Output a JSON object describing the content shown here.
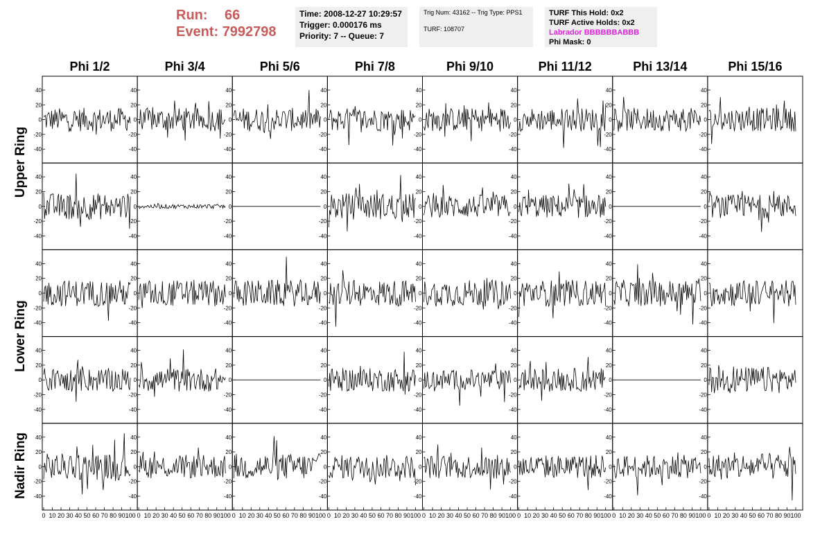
{
  "header": {
    "run_label": "Run:",
    "run_value": "66",
    "event_label": "Event:",
    "event_value": "7992798"
  },
  "time_box": {
    "time": "Time: 2008-12-27 10:29:57",
    "trigger": "Trigger: 0.000176 ms",
    "priority": "Priority: 7 -- Queue: 7"
  },
  "trig_box": {
    "trig": "Trig Num: 43162 -- Trig Type: PPS1",
    "turf": "TURF: 108707"
  },
  "turf_box": {
    "this_hold": "TURF This Hold: 0x2",
    "active_holds": "TURF Active Holds: 0x2",
    "labrador": "Labrador BBBBBBABBB",
    "phi_mask": "Phi Mask: 0"
  },
  "columns": [
    "Phi 1/2",
    "Phi 3/4",
    "Phi 5/6",
    "Phi 7/8",
    "Phi 9/10",
    "Phi 11/12",
    "Phi 13/14",
    "Phi 15/16"
  ],
  "rows": [
    "Upper Ring",
    "Lower Ring",
    "Nadir Ring"
  ],
  "colors": {
    "header_red": "#c85a5a",
    "labrador_magenta": "#e021e0",
    "box_bg": "#efefef"
  },
  "chart_data": {
    "type": "line",
    "grid": false,
    "xlim": [
      0,
      100
    ],
    "ylim": [
      -55,
      55
    ],
    "x_ticks": [
      "0",
      "10",
      "20",
      "30",
      "40",
      "50",
      "60",
      "70",
      "80",
      "90",
      "100"
    ],
    "y_ticks": [
      "40",
      "20",
      "0",
      "-20",
      "-40"
    ],
    "y_tick_values": [
      40,
      20,
      0,
      -20,
      -40
    ],
    "sample_count": 100,
    "waveforms": [
      [
        16,
        16,
        16,
        16,
        16,
        16,
        16,
        16
      ],
      [
        18,
        3,
        0,
        18,
        16,
        16,
        0,
        16
      ],
      [
        18,
        18,
        18,
        18,
        18,
        18,
        18,
        18
      ],
      [
        16,
        16,
        0,
        16,
        14,
        16,
        0,
        18
      ],
      [
        18,
        16,
        18,
        16,
        16,
        16,
        16,
        18
      ]
    ]
  }
}
